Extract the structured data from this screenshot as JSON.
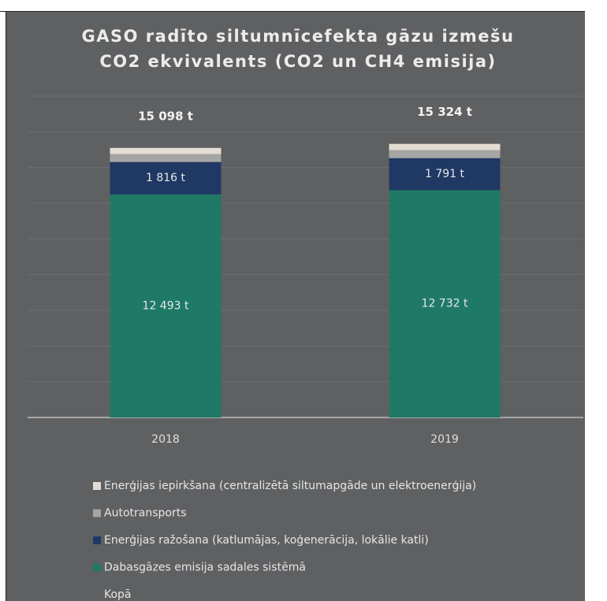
{
  "chart_data": {
    "type": "stacked_bar",
    "title": [
      "GASO radīto siltumnīcefekta gāzu izmešu",
      "CO2 ekvivalents (CO2 un CH4 emisija)"
    ],
    "categories": [
      "2018",
      "2019"
    ],
    "ylim": [
      0,
      18000
    ],
    "yticks": [
      0,
      2000,
      4000,
      6000,
      8000,
      10000,
      12000,
      14000,
      16000,
      18000
    ],
    "grid": true,
    "series": [
      {
        "name": "Dabasgāzes emisija sadales sistēmā",
        "color": "#1e7a66",
        "values": [
          12493,
          12732
        ],
        "value_labels": [
          "12 493 t",
          "12 732 t"
        ]
      },
      {
        "name": "Enerģijas ražošana (katlumājas, koģenerācija, lokālie katli)",
        "color": "#1f3864",
        "values": [
          1816,
          1791
        ],
        "value_labels": [
          "1 816 t",
          "1 791 t"
        ]
      },
      {
        "name": "Autotransports",
        "color": "#a5a5a5",
        "values": [
          440,
          450
        ]
      },
      {
        "name": "Enerģijas iepirkšana (centralizētā siltumapgāde un elektroenerģija)",
        "color": "#e4ddd3",
        "values": [
          349,
          351
        ]
      }
    ],
    "total": {
      "name": "Kopā",
      "values": [
        15098,
        15324
      ],
      "value_labels": [
        "15 098 t",
        "15 324 t"
      ]
    }
  }
}
